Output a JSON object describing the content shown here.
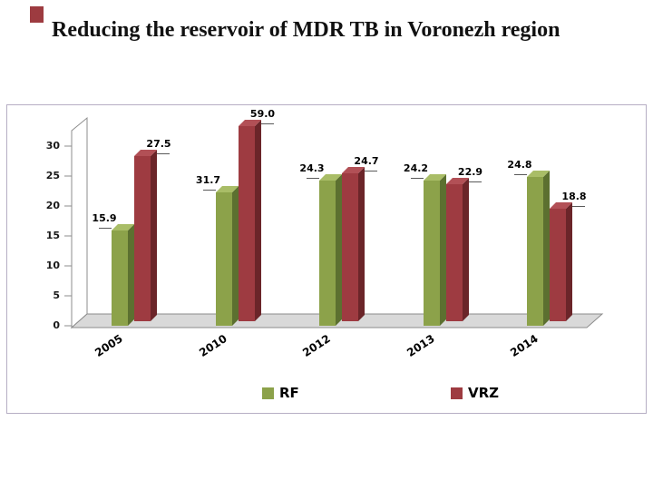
{
  "slide": {
    "title": "Reducing the reservoir of MDR TB in Voronezh region"
  },
  "chart_data": {
    "type": "bar",
    "variant": "3d-column",
    "title": "",
    "xlabel": "",
    "ylabel": "",
    "categories": [
      "2005",
      "2010",
      "2012",
      "2013",
      "2014"
    ],
    "series": [
      {
        "name": "RF",
        "values": [
          15.9,
          31.7,
          24.3,
          24.2,
          24.8
        ],
        "display_heights": [
          15.9,
          22.3,
          24.3,
          24.2,
          24.8
        ],
        "colors": {
          "front": "#8ca24a",
          "top": "#a9bd67",
          "side": "#5c7030"
        }
      },
      {
        "name": "VRZ",
        "values": [
          27.5,
          59.0,
          24.7,
          22.9,
          18.8
        ],
        "display_heights": [
          27.5,
          32.6,
          24.7,
          22.9,
          18.8
        ],
        "colors": {
          "front": "#9e3b41",
          "top": "#b25056",
          "side": "#6b2529"
        }
      }
    ],
    "y_ticks": [
      0,
      5,
      10,
      15,
      20,
      25,
      30
    ],
    "ylim": [
      0,
      33
    ],
    "grid": false,
    "legend_position": "bottom",
    "floor_color": "#d9d9d9",
    "axis_color": "#8c8c8c"
  }
}
